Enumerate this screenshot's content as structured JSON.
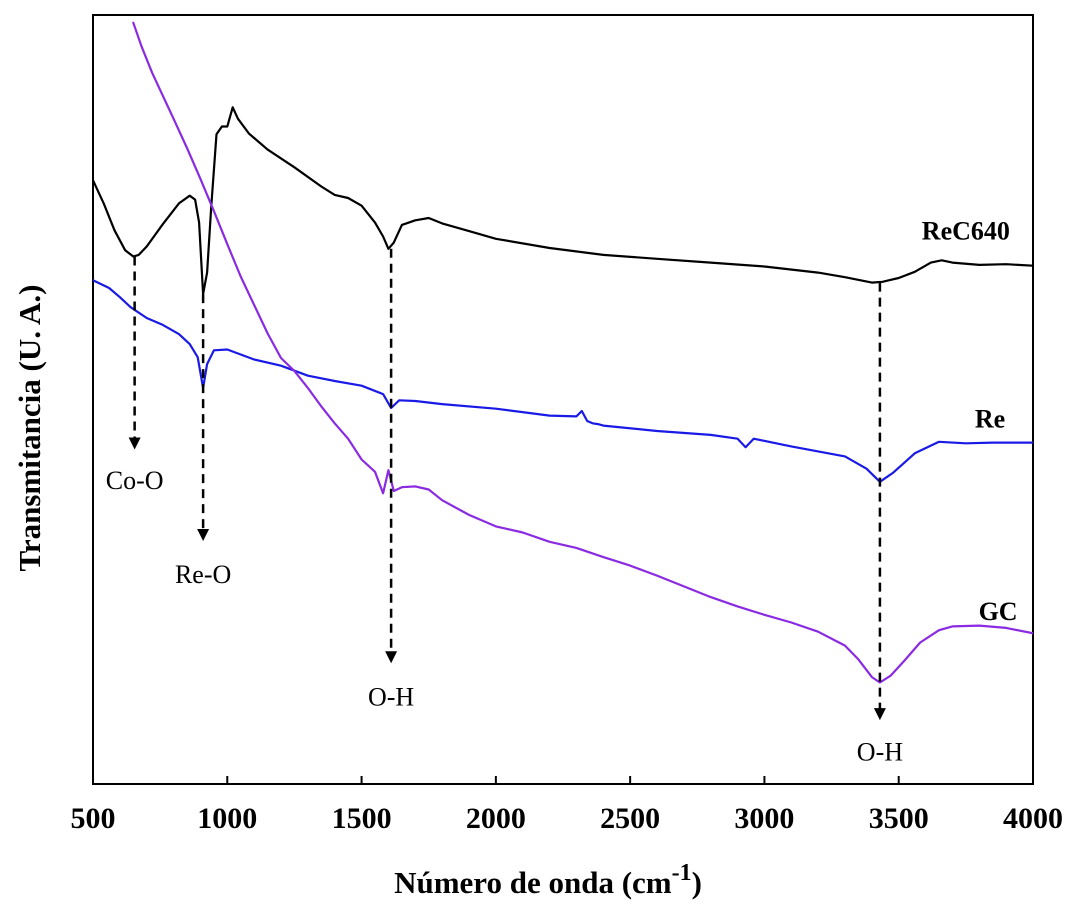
{
  "chart_data": {
    "type": "line",
    "xlabel": "Número de onda (cm",
    "xlabel_superscript": "-1",
    "xlabel_suffix": ")",
    "ylabel": "Transmitancia (U. A.)",
    "xlim": [
      500,
      4000
    ],
    "ylim": [
      0,
      100
    ],
    "y_ticks_shown": false,
    "grid": false,
    "x_ticks": [
      500,
      1000,
      1500,
      2000,
      2500,
      3000,
      3500,
      4000
    ],
    "x_tick_labels": [
      "500",
      "1000",
      "1500",
      "2000",
      "2500",
      "3000",
      "3500",
      "4000"
    ],
    "series": [
      {
        "name": "ReC640",
        "color": "#000000",
        "x": [
          500,
          540,
          580,
          620,
          650,
          670,
          700,
          760,
          820,
          860,
          880,
          895,
          910,
          925,
          940,
          960,
          980,
          1000,
          1020,
          1040,
          1080,
          1150,
          1250,
          1350,
          1400,
          1450,
          1500,
          1550,
          1580,
          1600,
          1620,
          1650,
          1700,
          1750,
          1800,
          1900,
          2000,
          2200,
          2400,
          2600,
          2800,
          3000,
          3200,
          3300,
          3400,
          3440,
          3500,
          3560,
          3620,
          3660,
          3700,
          3800,
          3900,
          4000
        ],
        "y": [
          78.5,
          75.5,
          72,
          69.4,
          68.6,
          68.8,
          69.9,
          72.8,
          75.5,
          76.5,
          76,
          73,
          63.7,
          66.5,
          75,
          84.5,
          85.5,
          85.5,
          88,
          86.5,
          84.6,
          82.5,
          80.2,
          77.7,
          76.6,
          76.2,
          75.2,
          73,
          71.2,
          69.6,
          70.4,
          72.7,
          73.3,
          73.6,
          72.9,
          71.9,
          70.9,
          69.7,
          68.8,
          68.3,
          67.8,
          67.3,
          66.5,
          65.9,
          65.2,
          65.3,
          65.8,
          66.6,
          67.8,
          68.1,
          67.8,
          67.5,
          67.6,
          67.4
        ]
      },
      {
        "name": "Re",
        "color": "#1a1ae6",
        "x": [
          500,
          560,
          600,
          640,
          700,
          760,
          820,
          860,
          890,
          910,
          925,
          950,
          1000,
          1100,
          1200,
          1300,
          1400,
          1500,
          1580,
          1610,
          1640,
          1700,
          1800,
          2000,
          2200,
          2300,
          2320,
          2340,
          2360,
          2380,
          2400,
          2600,
          2800,
          2900,
          2930,
          2960,
          3100,
          3300,
          3380,
          3430,
          3480,
          3560,
          3650,
          3750,
          3850,
          4000
        ],
        "y": [
          65.5,
          64.5,
          63.3,
          62,
          60.6,
          59.7,
          58.5,
          57.2,
          55.5,
          51.5,
          54.6,
          56.4,
          56.5,
          55.2,
          54.4,
          53.1,
          52.4,
          51.8,
          50.7,
          48.9,
          49.9,
          49.8,
          49.4,
          48.8,
          47.9,
          47.8,
          48.5,
          47.2,
          46.9,
          46.8,
          46.6,
          45.9,
          45.4,
          44.9,
          43.8,
          44.9,
          43.9,
          42.6,
          41,
          39.3,
          40.5,
          43,
          44.5,
          44.3,
          44.4,
          44.4
        ]
      },
      {
        "name": "GC",
        "color": "#8a2be2",
        "x": [
          650,
          680,
          720,
          760,
          800,
          850,
          900,
          950,
          1000,
          1050,
          1100,
          1150,
          1200,
          1250,
          1300,
          1350,
          1400,
          1450,
          1500,
          1550,
          1580,
          1600,
          1620,
          1650,
          1700,
          1750,
          1800,
          1900,
          2000,
          2100,
          2200,
          2300,
          2400,
          2500,
          2600,
          2700,
          2800,
          2900,
          3000,
          3100,
          3200,
          3300,
          3350,
          3400,
          3430,
          3470,
          3520,
          3580,
          3650,
          3700,
          3800,
          3900,
          4000
        ],
        "y": [
          99,
          96,
          92.5,
          89.5,
          86.5,
          82.7,
          78.7,
          74.5,
          70.2,
          66,
          62.3,
          58.6,
          55.4,
          53.7,
          51.5,
          49.1,
          46.9,
          44.9,
          42.2,
          40.6,
          37.8,
          40.8,
          38.1,
          38.6,
          38.7,
          38.3,
          36.9,
          35,
          33.5,
          32.7,
          31.5,
          30.7,
          29.5,
          28.4,
          27.1,
          25.7,
          24.3,
          23.1,
          22,
          21,
          19.8,
          18,
          16.2,
          13.9,
          13.2,
          14.1,
          16,
          18.4,
          20,
          20.5,
          20.6,
          20.3,
          19.6
        ]
      }
    ],
    "series_labels": [
      {
        "text": "ReC640",
        "x": 3750,
        "y": 72
      },
      {
        "text": "Re",
        "x": 3840,
        "y": 47.5
      },
      {
        "text": "GC",
        "x": 3870,
        "y": 22.5
      }
    ],
    "annotations": [
      {
        "text": "Co-O",
        "x": 655,
        "y_from": 68.6,
        "y_to": 43.5,
        "label_y": 39.5
      },
      {
        "text": "Re-O",
        "x": 910,
        "y_from": 63.7,
        "y_to": 31.6,
        "label_y": 27.3
      },
      {
        "text": "O-H",
        "x": 1610,
        "y_from": 69.6,
        "y_to": 15.7,
        "label_y": 11.4
      },
      {
        "text": "O-H",
        "x": 3430,
        "y_from": 65.2,
        "y_to": 8.3,
        "label_y": 4.2
      }
    ]
  }
}
